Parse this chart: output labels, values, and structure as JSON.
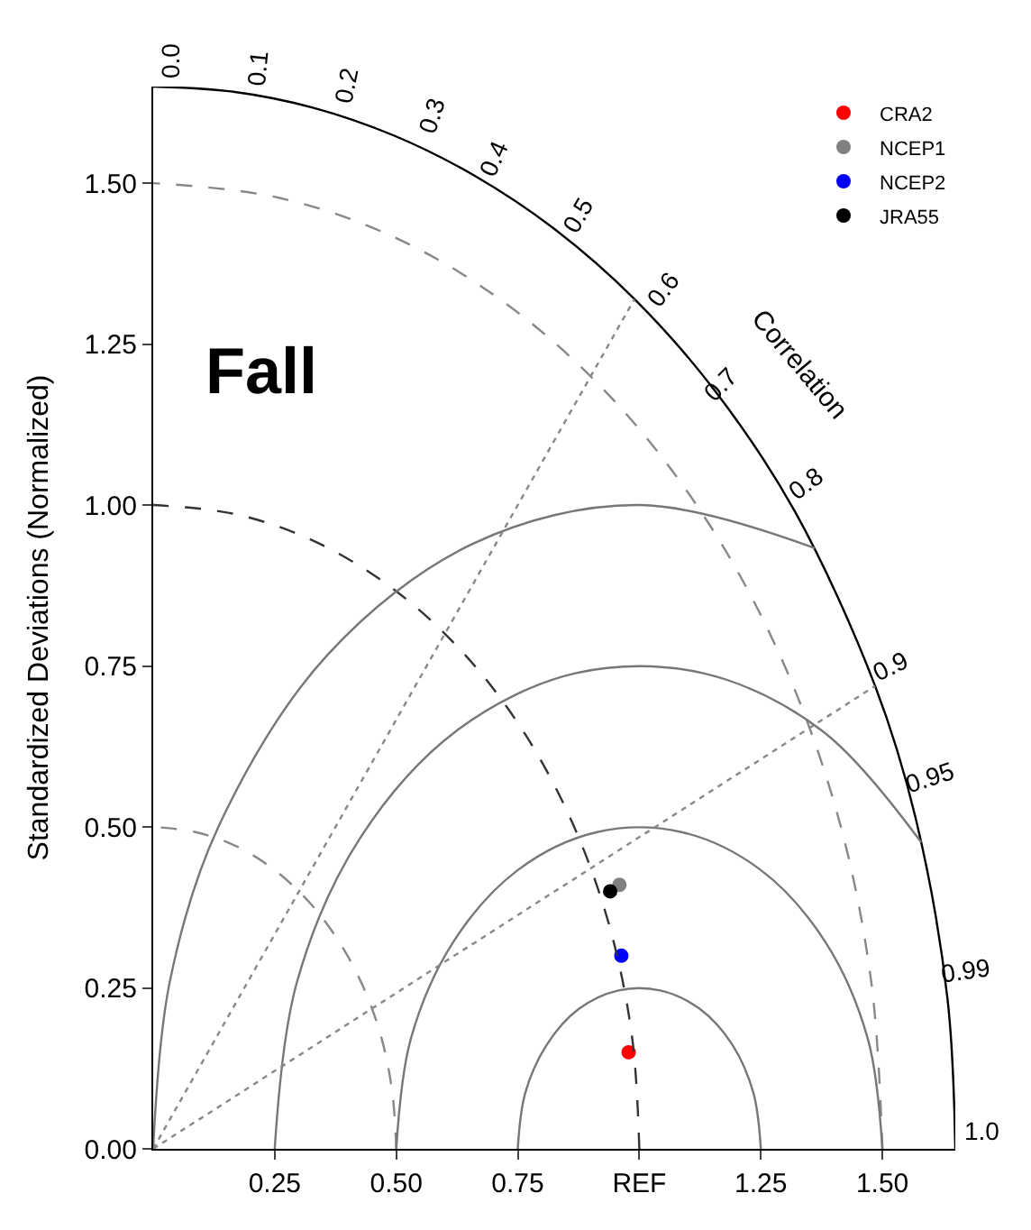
{
  "chart_data": {
    "type": "scatter",
    "title": "Fall",
    "ylabel": "Standardized Deviations (Normalized)",
    "series": [
      {
        "name": "CRA2",
        "color": "#ff0000",
        "x": [
          0.978
        ],
        "values": [
          0.15
        ]
      },
      {
        "name": "NCEP1",
        "color": "#808080",
        "x": [
          0.959
        ],
        "values": [
          0.41
        ]
      },
      {
        "name": "NCEP2",
        "color": "#0000ff",
        "x": [
          0.963
        ],
        "values": [
          0.3
        ]
      },
      {
        "name": "JRA55",
        "color": "#000000",
        "x": [
          0.94
        ],
        "values": [
          0.4
        ]
      },
      {
        "type": "line",
        "color": "#000000",
        "line_style": "solid",
        "marker": "none",
        "x": [
          1.65,
          1.634,
          1.568,
          1.485,
          1.32,
          1.155,
          0.99,
          0.825,
          0.66,
          0.495,
          0.33,
          0.165,
          0
        ],
        "values": [
          0,
          0.233,
          0.515,
          0.719,
          0.99,
          1.178,
          1.32,
          1.429,
          1.512,
          1.574,
          1.617,
          1.642,
          1.65
        ]
      },
      {
        "type": "line",
        "color": "#888888",
        "line_style": "dashed",
        "marker": "none",
        "x": [
          0.5,
          0.492,
          0.47,
          0.433,
          0.383,
          0.321,
          0.25,
          0.171,
          0.087,
          0
        ],
        "values": [
          0,
          0.087,
          0.171,
          0.25,
          0.321,
          0.383,
          0.433,
          0.47,
          0.492,
          0.5
        ]
      },
      {
        "type": "line",
        "color": "#333333",
        "line_style": "dashed",
        "marker": "none",
        "x": [
          1,
          0.985,
          0.94,
          0.866,
          0.766,
          0.643,
          0.5,
          0.342,
          0.174,
          0
        ],
        "values": [
          0,
          0.174,
          0.342,
          0.5,
          0.643,
          0.766,
          0.866,
          0.94,
          0.985,
          1
        ]
      },
      {
        "type": "line",
        "color": "#888888",
        "line_style": "dashed",
        "marker": "none",
        "x": [
          1.5,
          1.477,
          1.41,
          1.299,
          1.149,
          0.964,
          0.75,
          0.513,
          0.26,
          0
        ],
        "values": [
          0,
          0.26,
          0.513,
          0.75,
          0.964,
          1.149,
          1.299,
          1.41,
          1.477,
          1.5
        ]
      },
      {
        "type": "line",
        "color": "#777777",
        "line_style": "solid",
        "marker": "none",
        "x": [
          1.25,
          1.235,
          1.192,
          1.125,
          1.043,
          0.957,
          0.875,
          0.809,
          0.765,
          0.75
        ],
        "values": [
          0,
          0.086,
          0.161,
          0.217,
          0.246,
          0.246,
          0.217,
          0.161,
          0.086,
          0
        ]
      },
      {
        "type": "line",
        "color": "#777777",
        "line_style": "solid",
        "marker": "none",
        "x": [
          1.5,
          1.47,
          1.383,
          1.25,
          1.087,
          0.913,
          0.75,
          0.617,
          0.53,
          0.5
        ],
        "values": [
          0,
          0.171,
          0.321,
          0.433,
          0.492,
          0.492,
          0.433,
          0.321,
          0.171,
          0
        ]
      },
      {
        "type": "line",
        "color": "#777777",
        "line_style": "solid",
        "marker": "none",
        "x": [
          1.58,
          1.375,
          1.13,
          0.87,
          0.625,
          0.425,
          0.295,
          0.25
        ],
        "values": [
          0.476,
          0.65,
          0.739,
          0.739,
          0.65,
          0.482,
          0.257,
          0
        ]
      },
      {
        "type": "line",
        "color": "#777777",
        "line_style": "solid",
        "marker": "none",
        "x": [
          1.361,
          1,
          0.658,
          0.357,
          0.134,
          0.034,
          0
        ],
        "values": [
          0.933,
          1,
          0.94,
          0.766,
          0.5,
          0.259,
          0
        ]
      },
      {
        "type": "line",
        "color": "#888888",
        "line_style": "dotted",
        "marker": "none",
        "x": [
          0,
          0.99
        ],
        "values": [
          0,
          1.32
        ]
      },
      {
        "type": "line",
        "color": "#888888",
        "line_style": "dotted",
        "marker": "none",
        "x": [
          0,
          1.485
        ],
        "values": [
          0,
          0.719
        ]
      }
    ],
    "xlim": [
      0,
      1.65
    ],
    "ylim": [
      0,
      1.65
    ],
    "xticks": [
      0.25,
      {
        "value": 0.5,
        "label": "0.50"
      },
      0.75,
      {
        "value": 1.0,
        "label": "REF"
      },
      1.25,
      {
        "value": 1.5,
        "label": "1.50"
      }
    ],
    "yticks": [
      {
        "value": 0,
        "label": "0.00"
      },
      0.25,
      {
        "value": 0.5,
        "label": "0.50"
      },
      0.75,
      {
        "value": 1.0,
        "label": "1.00"
      },
      1.25,
      {
        "value": 1.5,
        "label": "1.50"
      }
    ],
    "annotations": [
      {
        "text": "0.0",
        "x": 0,
        "y": 1.65
      },
      {
        "text": "0.1",
        "x": 0.165,
        "y": 1.642
      },
      {
        "text": "0.2",
        "x": 0.33,
        "y": 1.617
      },
      {
        "text": "0.3",
        "x": 0.495,
        "y": 1.574
      },
      {
        "text": "0.4",
        "x": 0.66,
        "y": 1.512
      },
      {
        "text": "0.5",
        "x": 0.825,
        "y": 1.429
      },
      {
        "text": "0.6",
        "x": 0.99,
        "y": 1.32
      },
      {
        "text": "0.7",
        "x": 1.155,
        "y": 1.178
      },
      {
        "text": "0.8",
        "x": 1.32,
        "y": 0.99
      },
      {
        "text": "0.9",
        "x": 1.485,
        "y": 0.719
      },
      {
        "text": "0.95",
        "x": 1.568,
        "y": 0.515
      },
      {
        "text": "0.99",
        "x": 1.634,
        "y": 0.233
      },
      {
        "text": "1.0",
        "x": 1.65,
        "y": 0
      },
      "Correlation"
    ],
    "legend": "top right",
    "marker": "circle"
  }
}
